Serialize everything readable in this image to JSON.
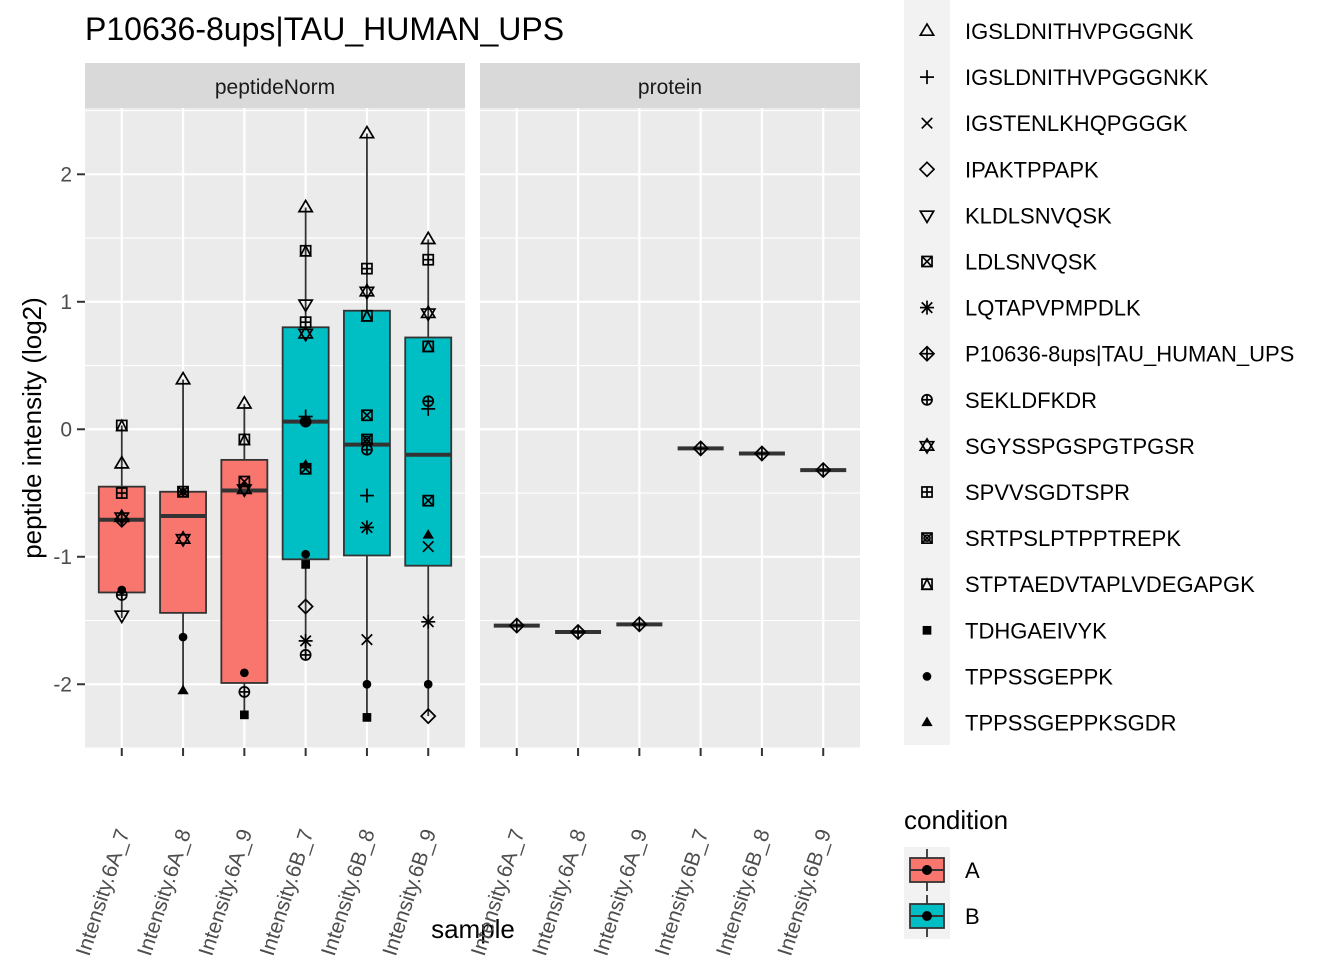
{
  "chart_data": {
    "type": "boxplot",
    "title": "P10636-8ups|TAU_HUMAN_UPS",
    "xlabel": "sample",
    "ylabel": "peptide intensity (log2)",
    "ylim": [
      -2.5,
      2.52
    ],
    "yticks": [
      -2,
      -1,
      0,
      1,
      2
    ],
    "grid": true,
    "categories": [
      "Intensity.6A_7",
      "Intensity.6A_8",
      "Intensity.6A_9",
      "Intensity.6B_7",
      "Intensity.6B_8",
      "Intensity.6B_9"
    ],
    "category_condition": [
      "A",
      "A",
      "A",
      "B",
      "B",
      "B"
    ],
    "facets": [
      {
        "name": "peptideNorm",
        "boxes": [
          {
            "q1": -1.28,
            "median": -0.71,
            "q3": -0.45,
            "lower": -1.48,
            "upper": 0.03
          },
          {
            "q1": -1.44,
            "median": -0.68,
            "q3": -0.49,
            "lower": -2.05,
            "upper": 0.39
          },
          {
            "q1": -1.99,
            "median": -0.48,
            "q3": -0.24,
            "lower": -2.24,
            "upper": 0.2
          },
          {
            "q1": -1.02,
            "median": 0.06,
            "q3": 0.8,
            "lower": -1.77,
            "upper": 1.74
          },
          {
            "q1": -0.99,
            "median": -0.12,
            "q3": 0.93,
            "lower": -2.26,
            "upper": 2.32
          },
          {
            "q1": -1.07,
            "median": -0.2,
            "q3": 0.72,
            "lower": -2.25,
            "upper": 1.49
          }
        ],
        "points": [
          {
            "x": 1,
            "y": 0.03,
            "shape": "STPTAEDVTAPLVDEGAPGK"
          },
          {
            "x": 1,
            "y": -0.27,
            "shape": "IGSLDNITHVPGGGNK"
          },
          {
            "x": 1,
            "y": -0.5,
            "shape": "SPVVSGDTSPR"
          },
          {
            "x": 1,
            "y": -0.69,
            "shape": "SGYSSPGSPGTPGSR"
          },
          {
            "x": 1,
            "y": -0.71,
            "shape": "P10636-8ups|TAU_HUMAN_UPS"
          },
          {
            "x": 1,
            "y": -1.26,
            "shape": "TPPSSGEPPK"
          },
          {
            "x": 1,
            "y": -1.3,
            "shape": "SEKLDFKDR"
          },
          {
            "x": 1,
            "y": -1.46,
            "shape": "KLDLSNVQSK"
          },
          {
            "x": 2,
            "y": 0.39,
            "shape": "IGSLDNITHVPGGGNK"
          },
          {
            "x": 2,
            "y": -0.49,
            "shape": "SPVVSGDTSPR"
          },
          {
            "x": 2,
            "y": -0.49,
            "shape": "SRTPSLPTPPTREPK"
          },
          {
            "x": 2,
            "y": -0.86,
            "shape": "SGYSSPGSPGTPGSR"
          },
          {
            "x": 2,
            "y": -1.63,
            "shape": "TPPSSGEPPK"
          },
          {
            "x": 2,
            "y": -2.05,
            "shape": "TPPSSGEPPKSGDR"
          },
          {
            "x": 3,
            "y": 0.2,
            "shape": "IGSLDNITHVPGGGNK"
          },
          {
            "x": 3,
            "y": -0.08,
            "shape": "STPTAEDVTAPLVDEGAPGK"
          },
          {
            "x": 3,
            "y": -0.41,
            "shape": "LDLSNVQSK"
          },
          {
            "x": 3,
            "y": -0.47,
            "shape": "SGYSSPGSPGTPGSR"
          },
          {
            "x": 3,
            "y": -1.91,
            "shape": "TPPSSGEPPK"
          },
          {
            "x": 3,
            "y": -2.06,
            "shape": "SEKLDFKDR"
          },
          {
            "x": 3,
            "y": -2.24,
            "shape": "TDHGAEIVYK"
          },
          {
            "x": 4,
            "y": 1.74,
            "shape": "IGSLDNITHVPGGGNK"
          },
          {
            "x": 4,
            "y": 1.4,
            "shape": "STPTAEDVTAPLVDEGAPGK"
          },
          {
            "x": 4,
            "y": 0.98,
            "shape": "KLDLSNVQSK"
          },
          {
            "x": 4,
            "y": 0.84,
            "shape": "SPVVSGDTSPR"
          },
          {
            "x": 4,
            "y": 0.75,
            "shape": "SGYSSPGSPGTPGSR"
          },
          {
            "x": 4,
            "y": 0.1,
            "shape": "IGSLDNITHVPGGGNKK"
          },
          {
            "x": 4,
            "y": 0.06,
            "shape": "TPPSSGEPPK"
          },
          {
            "x": 4,
            "y": 0.06,
            "shape": "SEKLDFKDR"
          },
          {
            "x": 4,
            "y": -0.28,
            "shape": "TPPSSGEPPKSGDR"
          },
          {
            "x": 4,
            "y": -0.31,
            "shape": "LDLSNVQSK"
          },
          {
            "x": 4,
            "y": -0.98,
            "shape": "TPPSSGEPPK"
          },
          {
            "x": 4,
            "y": -1.06,
            "shape": "TDHGAEIVYK"
          },
          {
            "x": 4,
            "y": -1.39,
            "shape": "IPAKTPPAPK"
          },
          {
            "x": 4,
            "y": -1.66,
            "shape": "LQTAPVPMPDLK"
          },
          {
            "x": 4,
            "y": -1.77,
            "shape": "SEKLDFKDR"
          },
          {
            "x": 5,
            "y": 2.32,
            "shape": "IGSLDNITHVPGGGNK"
          },
          {
            "x": 5,
            "y": 1.26,
            "shape": "SPVVSGDTSPR"
          },
          {
            "x": 5,
            "y": 1.08,
            "shape": "SGYSSPGSPGTPGSR"
          },
          {
            "x": 5,
            "y": 0.89,
            "shape": "STPTAEDVTAPLVDEGAPGK"
          },
          {
            "x": 5,
            "y": 0.11,
            "shape": "LDLSNVQSK"
          },
          {
            "x": 5,
            "y": -0.08,
            "shape": "SRTPSLPTPPTREPK"
          },
          {
            "x": 5,
            "y": -0.16,
            "shape": "SEKLDFKDR"
          },
          {
            "x": 5,
            "y": -0.52,
            "shape": "IGSLDNITHVPGGGNKK"
          },
          {
            "x": 5,
            "y": -0.77,
            "shape": "LQTAPVPMPDLK"
          },
          {
            "x": 5,
            "y": -1.65,
            "shape": "IGSTENLKHQPGGGK"
          },
          {
            "x": 5,
            "y": -2.0,
            "shape": "TPPSSGEPPK"
          },
          {
            "x": 5,
            "y": -2.26,
            "shape": "TDHGAEIVYK"
          },
          {
            "x": 6,
            "y": 1.49,
            "shape": "IGSLDNITHVPGGGNK"
          },
          {
            "x": 6,
            "y": 1.33,
            "shape": "SPVVSGDTSPR"
          },
          {
            "x": 6,
            "y": 0.91,
            "shape": "SGYSSPGSPGTPGSR"
          },
          {
            "x": 6,
            "y": 0.65,
            "shape": "STPTAEDVTAPLVDEGAPGK"
          },
          {
            "x": 6,
            "y": 0.22,
            "shape": "SEKLDFKDR"
          },
          {
            "x": 6,
            "y": 0.16,
            "shape": "IGSLDNITHVPGGGNKK"
          },
          {
            "x": 6,
            "y": -0.56,
            "shape": "LDLSNVQSK"
          },
          {
            "x": 6,
            "y": -0.83,
            "shape": "TPPSSGEPPKSGDR"
          },
          {
            "x": 6,
            "y": -0.92,
            "shape": "IGSTENLKHQPGGGK"
          },
          {
            "x": 6,
            "y": -1.51,
            "shape": "LQTAPVPMPDLK"
          },
          {
            "x": 6,
            "y": -2.0,
            "shape": "TPPSSGEPPK"
          },
          {
            "x": 6,
            "y": -2.25,
            "shape": "IPAKTPPAPK"
          }
        ]
      },
      {
        "name": "protein",
        "boxes": [
          {
            "median": -1.54
          },
          {
            "median": -1.59
          },
          {
            "median": -1.53
          },
          {
            "median": -0.15
          },
          {
            "median": -0.19
          },
          {
            "median": -0.32
          }
        ],
        "points": [
          {
            "x": 1,
            "y": -1.54,
            "shape": "P10636-8ups|TAU_HUMAN_UPS"
          },
          {
            "x": 2,
            "y": -1.59,
            "shape": "P10636-8ups|TAU_HUMAN_UPS"
          },
          {
            "x": 3,
            "y": -1.53,
            "shape": "P10636-8ups|TAU_HUMAN_UPS"
          },
          {
            "x": 4,
            "y": -0.15,
            "shape": "P10636-8ups|TAU_HUMAN_UPS"
          },
          {
            "x": 5,
            "y": -0.19,
            "shape": "P10636-8ups|TAU_HUMAN_UPS"
          },
          {
            "x": 6,
            "y": -0.32,
            "shape": "P10636-8ups|TAU_HUMAN_UPS"
          }
        ]
      }
    ],
    "shape_legend": {
      "entries": [
        {
          "label": "IGSLDNITHVPGGGNK",
          "symbol": "triangle-open"
        },
        {
          "label": "IGSLDNITHVPGGGNKK",
          "symbol": "plus"
        },
        {
          "label": "IGSTENLKHQPGGGK",
          "symbol": "cross"
        },
        {
          "label": "IPAKTPPAPK",
          "symbol": "diamond-open"
        },
        {
          "label": "KLDLSNVQSK",
          "symbol": "triangle-down-open"
        },
        {
          "label": "LDLSNVQSK",
          "symbol": "square-x"
        },
        {
          "label": "LQTAPVPMPDLK",
          "symbol": "asterisk"
        },
        {
          "label": "P10636-8ups|TAU_HUMAN_UPS",
          "symbol": "diamond-plus"
        },
        {
          "label": "SEKLDFKDR",
          "symbol": "circle-plus"
        },
        {
          "label": "SGYSSPGSPGTPGSR",
          "symbol": "star-of-david"
        },
        {
          "label": "SPVVSGDTSPR",
          "symbol": "square-plus"
        },
        {
          "label": "SRTPSLPTPPTREPK",
          "symbol": "circle-in-square"
        },
        {
          "label": "STPTAEDVTAPLVDEGAPGK",
          "symbol": "triangle-in-square"
        },
        {
          "label": "TDHGAEIVYK",
          "symbol": "square-filled"
        },
        {
          "label": "TPPSSGEPPK",
          "symbol": "circle-filled"
        },
        {
          "label": "TPPSSGEPPKSGDR",
          "symbol": "triangle-filled"
        }
      ]
    },
    "fill_legend": {
      "title": "condition",
      "entries": [
        {
          "label": "A",
          "color": "#F8766D"
        },
        {
          "label": "B",
          "color": "#00BFC4"
        }
      ]
    },
    "colors": {
      "panel_bg": "#EBEBEB",
      "strip_bg": "#D9D9D9",
      "grid": "#FFFFFF",
      "A": "#F8766D",
      "B": "#00BFC4"
    }
  }
}
